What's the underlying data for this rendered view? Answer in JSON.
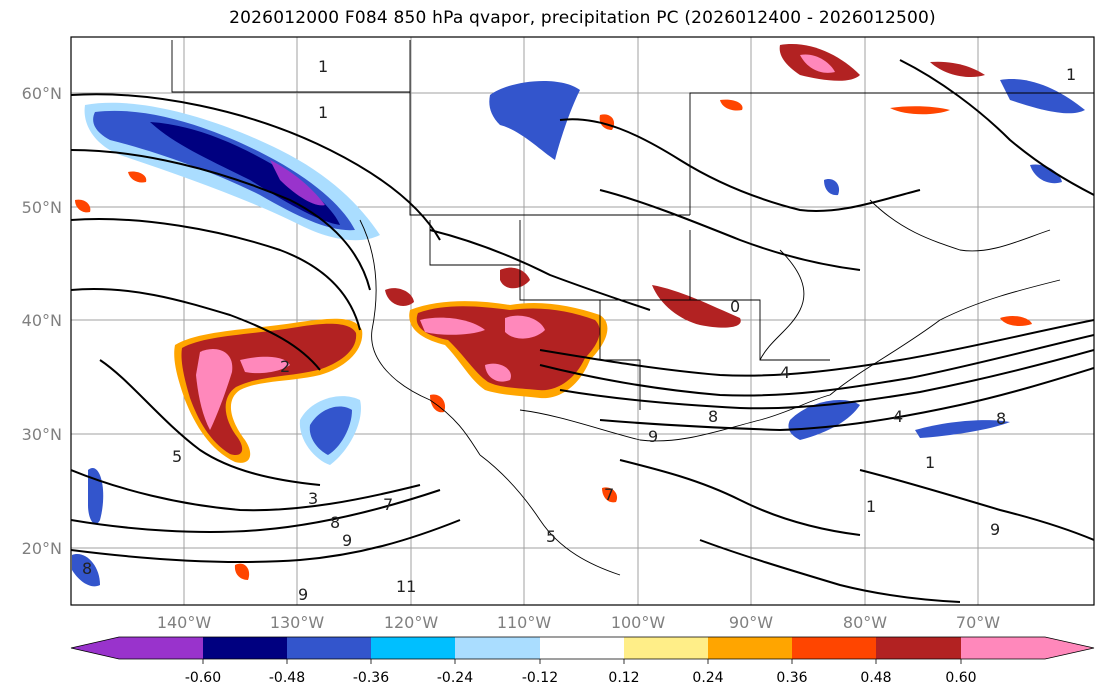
{
  "title": "2026012000 F084 850 hPa qvapor, precipitation PC (2026012400 - 2026012500)",
  "map": {
    "lat_labels": [
      "60°N",
      "50°N",
      "40°N",
      "30°N",
      "20°N"
    ],
    "lon_labels": [
      "140°W",
      "130°W",
      "120°W",
      "110°W",
      "100°W",
      "90°W",
      "80°W",
      "70°W"
    ],
    "contour_labels": [
      "1",
      "1",
      "2",
      "3",
      "5",
      "7",
      "8",
      "9",
      "11",
      "9",
      "8",
      "5",
      "4",
      "4",
      "8",
      "7",
      "9",
      "0",
      "1",
      "1",
      "9",
      "8",
      "1"
    ]
  },
  "colorbar": {
    "labels": [
      "-0.60",
      "-0.48",
      "-0.36",
      "-0.24",
      "-0.12",
      "0.12",
      "0.24",
      "0.36",
      "0.48",
      "0.60"
    ],
    "colors": {
      "lt_min": "#9933cc",
      "neg060": "#000080",
      "neg048": "#3355cc",
      "neg036": "#00bfff",
      "neg024": "#aaddff",
      "zero": "#ffffff",
      "pos012": "#ffee88",
      "pos024": "#ffa500",
      "pos036": "#ff4500",
      "pos048": "#b22222",
      "gt_max": "#ff88bb"
    }
  }
}
